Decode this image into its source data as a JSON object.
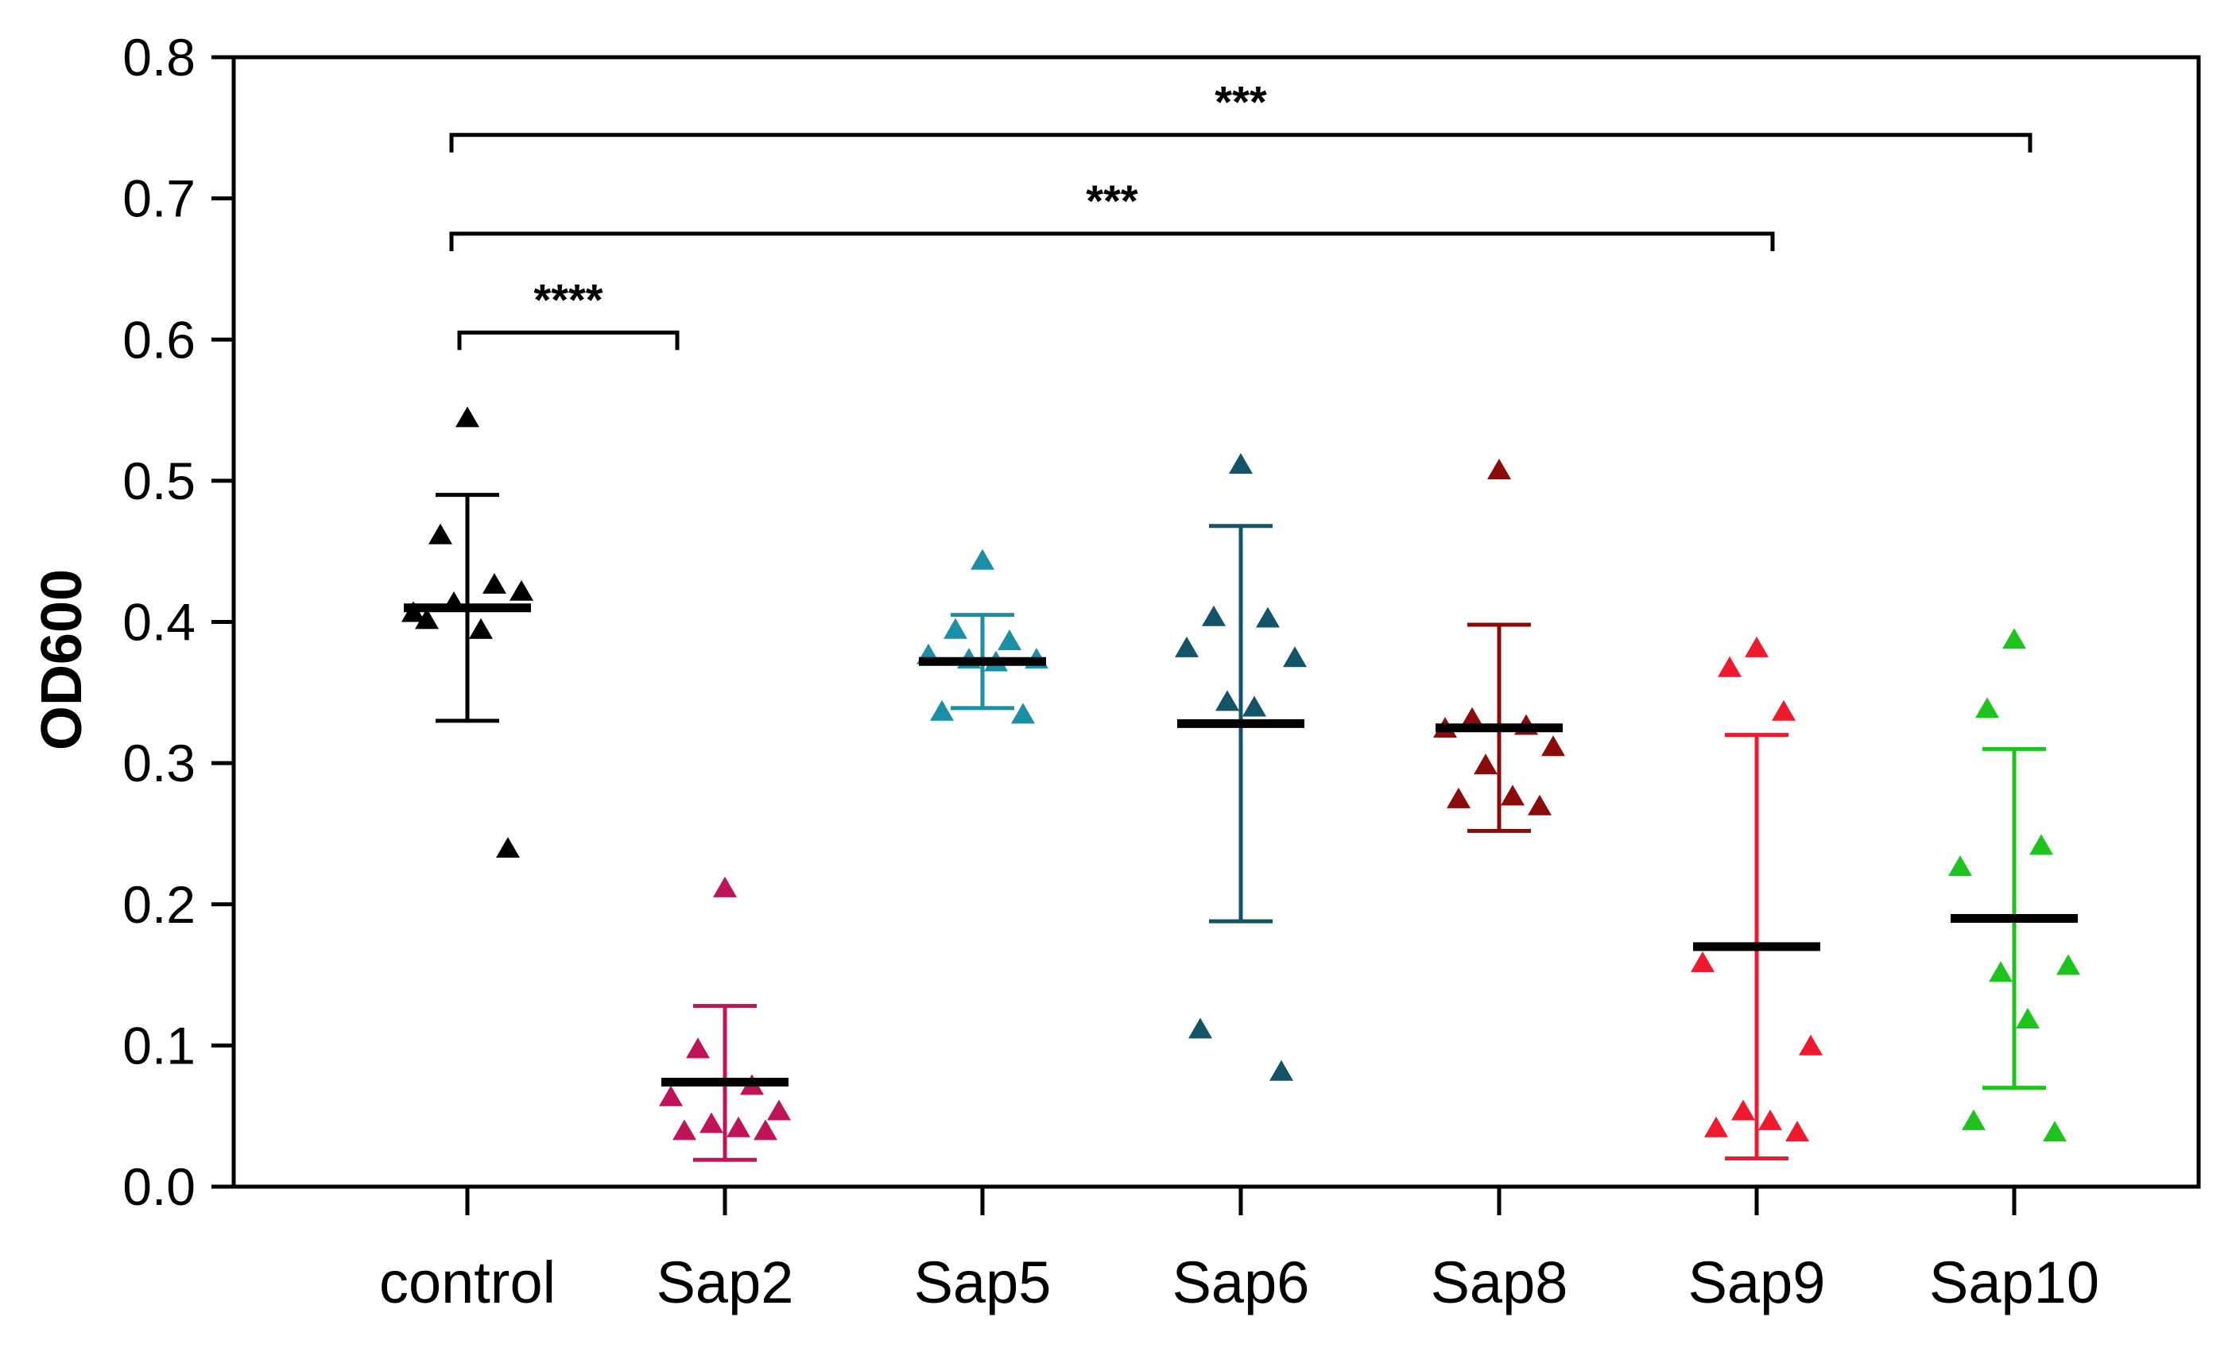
{
  "chart_data": {
    "type": "scatter",
    "title": "",
    "xlabel": "",
    "ylabel": "OD600",
    "ylim": [
      0,
      0.8
    ],
    "yticks": [
      "0.0",
      "0.1",
      "0.2",
      "0.3",
      "0.4",
      "0.5",
      "0.6",
      "0.7",
      "0.8"
    ],
    "categories": [
      "control",
      "Sap2",
      "Sap5",
      "Sap6",
      "Sap8",
      "Sap9",
      "Sap10"
    ],
    "marker": "triangle",
    "series": [
      {
        "name": "control",
        "color": "#000000",
        "mean": 0.41,
        "sd_low": 0.33,
        "sd_high": 0.49,
        "points": [
          0.543,
          0.46,
          0.425,
          0.405,
          0.42,
          0.412,
          0.393,
          0.4,
          0.238
        ]
      },
      {
        "name": "Sap2",
        "color": "#c0145a",
        "mean": 0.074,
        "sd_low": 0.019,
        "sd_high": 0.128,
        "points": [
          0.21,
          0.096,
          0.07,
          0.062,
          0.052,
          0.043,
          0.04,
          0.038,
          0.038
        ]
      },
      {
        "name": "Sap5",
        "color": "#1b8fa6",
        "mean": 0.372,
        "sd_low": 0.339,
        "sd_high": 0.405,
        "points": [
          0.442,
          0.393,
          0.385,
          0.375,
          0.372,
          0.372,
          0.37,
          0.335,
          0.333
        ]
      },
      {
        "name": "Sap6",
        "color": "#135468",
        "mean": 0.328,
        "sd_low": 0.188,
        "sd_high": 0.468,
        "points": [
          0.51,
          0.402,
          0.401,
          0.38,
          0.373,
          0.342,
          0.338,
          0.11,
          0.08
        ]
      },
      {
        "name": "Sap8",
        "color": "#8b0a0a",
        "mean": 0.325,
        "sd_low": 0.252,
        "sd_high": 0.398,
        "points": [
          0.506,
          0.33,
          0.325,
          0.323,
          0.31,
          0.297,
          0.275,
          0.273,
          0.268
        ]
      },
      {
        "name": "Sap9",
        "color": "#f0192d",
        "mean": 0.17,
        "sd_low": 0.02,
        "sd_high": 0.32,
        "points": [
          0.38,
          0.366,
          0.335,
          0.157,
          0.098,
          0.052,
          0.045,
          0.04,
          0.037
        ]
      },
      {
        "name": "Sap10",
        "color": "#1ec31e",
        "mean": 0.19,
        "sd_low": 0.07,
        "sd_high": 0.31,
        "points": [
          0.386,
          0.337,
          0.24,
          0.225,
          0.155,
          0.15,
          0.117,
          0.045,
          0.037
        ]
      }
    ],
    "significance": [
      {
        "from": "control",
        "to": "Sap2",
        "label": "****",
        "y": 0.605
      },
      {
        "from": "control",
        "to": "Sap9",
        "label": "***",
        "y": 0.675
      },
      {
        "from": "control",
        "to": "Sap10",
        "label": "***",
        "y": 0.745
      }
    ]
  }
}
